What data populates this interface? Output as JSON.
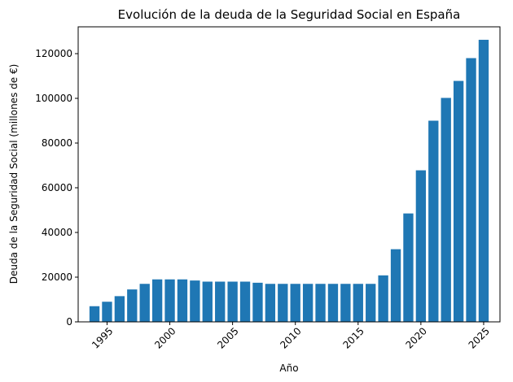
{
  "chart_data": {
    "type": "bar",
    "title": "Evolución de la deuda de la Seguridad Social en España",
    "xlabel": "Año",
    "ylabel": "Deuda de la Seguridad Social (millones de €)",
    "bar_color": "#1f77b4",
    "x": [
      1994,
      1995,
      1996,
      1997,
      1998,
      1999,
      2000,
      2001,
      2002,
      2003,
      2004,
      2005,
      2006,
      2007,
      2008,
      2009,
      2010,
      2011,
      2012,
      2013,
      2014,
      2015,
      2016,
      2017,
      2018,
      2019,
      2020,
      2021,
      2022,
      2023,
      2024,
      2025
    ],
    "values": [
      7000,
      9000,
      11500,
      14500,
      17000,
      19000,
      19000,
      19000,
      18500,
      18000,
      18000,
      18000,
      18000,
      17500,
      17000,
      17000,
      17000,
      17000,
      17000,
      17000,
      17000,
      17000,
      17000,
      20800,
      32500,
      48500,
      67800,
      90000,
      100200,
      107800,
      118000,
      126200
    ],
    "xlim": [
      1992.7,
      2026.3
    ],
    "ylim": [
      0,
      132000
    ],
    "xticks": [
      1995,
      2000,
      2005,
      2010,
      2015,
      2020,
      2025
    ],
    "yticks": [
      0,
      20000,
      40000,
      60000,
      80000,
      100000,
      120000
    ],
    "grid": false,
    "legend": "none"
  }
}
